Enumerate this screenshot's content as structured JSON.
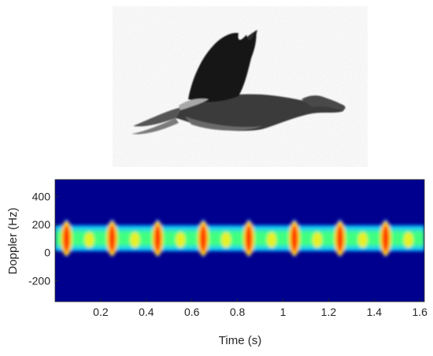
{
  "photo": {
    "subject_icon": "goose-in-flight"
  },
  "chart_data": {
    "type": "heatmap",
    "title": "",
    "xlabel": "Time (s)",
    "ylabel": "Doppler (Hz)",
    "xlim": [
      0,
      1.62
    ],
    "ylim": [
      -350,
      520
    ],
    "x_ticks": [
      "0.2",
      "0.4",
      "0.6",
      "0.8",
      "1",
      "1.2",
      "1.4",
      "1.6"
    ],
    "x_tick_values": [
      0.2,
      0.4,
      0.6,
      0.8,
      1.0,
      1.2,
      1.4,
      1.6
    ],
    "y_ticks": [
      "400",
      "200",
      "0",
      "-200"
    ],
    "y_tick_values": [
      400,
      200,
      0,
      -200
    ],
    "grid": false,
    "colormap": "jet",
    "background_color": "#00008f",
    "pattern": {
      "description_free": true,
      "wingbeat_period_s": 0.2,
      "peak_times_s": [
        0.05,
        0.25,
        0.45,
        0.65,
        0.85,
        1.05,
        1.25,
        1.45
      ],
      "minor_peak_times_s": [
        0.15,
        0.35,
        0.55,
        0.75,
        0.95,
        1.15,
        1.35,
        1.55
      ],
      "band_center_hz": 100,
      "band_halfwidth_hz": 90,
      "peak_halfheight_hz": 140
    }
  }
}
